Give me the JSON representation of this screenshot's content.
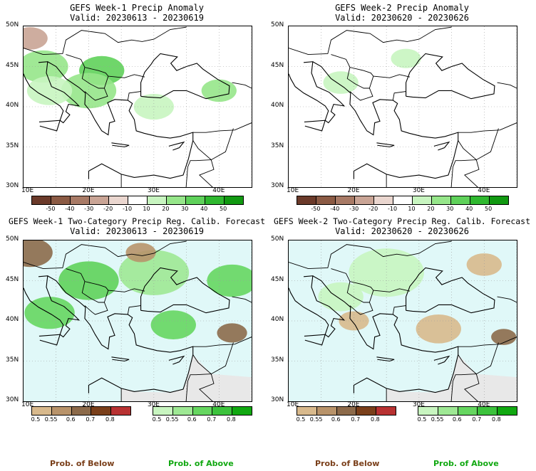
{
  "panels": [
    {
      "id": "p1",
      "title1": "GEFS Week-1 Precip Anomaly",
      "title2": "Valid: 20230613 - 20230619",
      "type": "anomaly"
    },
    {
      "id": "p2",
      "title1": "GEFS Week-2 Precip Anomaly",
      "title2": "Valid: 20230620 - 20230626",
      "type": "anomaly"
    },
    {
      "id": "p3",
      "title1": "GEFS Week-1 Two-Category Precip Reg. Calib. Forecast",
      "title2": "Valid: 20230613 - 20230619",
      "type": "prob"
    },
    {
      "id": "p4",
      "title1": "GEFS Week-2 Two-Category Precip Reg. Calib. Forecast",
      "title2": "Valid: 20230620 - 20230626",
      "type": "prob"
    }
  ],
  "lat_ticks": [
    "50N",
    "45N",
    "40N",
    "35N",
    "30N"
  ],
  "lon_ticks": [
    "10E",
    "20E",
    "30E",
    "40E"
  ],
  "anomaly_scale": {
    "labels": [
      "-50",
      "-40",
      "-30",
      "-20",
      "-10",
      "10",
      "20",
      "30",
      "40",
      "50"
    ],
    "colors": [
      "#6b3a2a",
      "#8b5a44",
      "#a87a66",
      "#c9a495",
      "#ead6cf",
      "#ffffff",
      "#c8f5c0",
      "#96e68a",
      "#5fd15a",
      "#2fb82f",
      "#119911"
    ]
  },
  "prob_below": {
    "labels": [
      "0.5",
      "0.55",
      "0.6",
      "0.7",
      "0.8"
    ],
    "colors": [
      "#d8b98c",
      "#b8936a",
      "#8c6a4a",
      "#7a3f1a",
      "#b83232"
    ]
  },
  "prob_above": {
    "labels": [
      "0.5",
      "0.55",
      "0.6",
      "0.7",
      "0.8"
    ],
    "colors": [
      "#c8f5c0",
      "#9ee894",
      "#66d660",
      "#3cc23c",
      "#11a811"
    ]
  },
  "legend": {
    "below": "Prob. of Below",
    "above": "Prob. of Above"
  },
  "colors": {
    "below_title": "#7a3f1a",
    "above_title": "#11a811",
    "sea": "#e0f8f8",
    "land_na": "#e8e8e8"
  }
}
